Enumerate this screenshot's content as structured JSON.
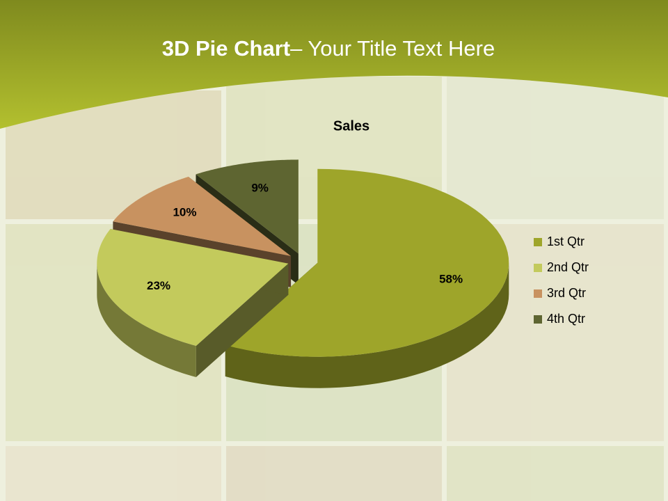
{
  "slide": {
    "title_bold": "3D Pie Chart",
    "title_rest": "– Your Title Text Here"
  },
  "chart_data": {
    "type": "pie",
    "title": "Sales",
    "categories": [
      "1st Qtr",
      "2nd Qtr",
      "3rd Qtr",
      "4th Qtr"
    ],
    "values": [
      58,
      23,
      10,
      9
    ],
    "value_labels": [
      "58%",
      "23%",
      "10%",
      "9%"
    ],
    "colors": [
      "#9ea52a",
      "#c3ca5c",
      "#c89260",
      "#5e6531"
    ],
    "legend": "right"
  }
}
